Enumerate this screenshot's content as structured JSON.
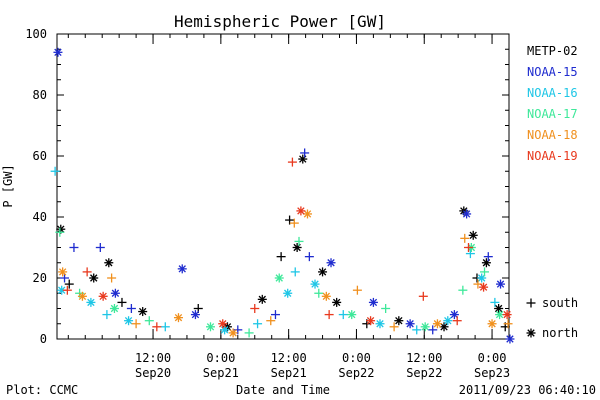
{
  "chart_data": {
    "type": "scatter",
    "title": "Hemispheric Power [GW]",
    "xlabel": "Date and Time",
    "ylabel": "P [GW]",
    "ylim": [
      0,
      100
    ],
    "yticks": [
      0,
      20,
      40,
      60,
      80,
      100
    ],
    "xlim": [
      "2011-09-19T19:00",
      "2011-09-23T03:00"
    ],
    "xticks": [
      {
        "t": "2011-09-20T12:00",
        "line1": "12:00",
        "line2": "Sep20"
      },
      {
        "t": "2011-09-21T00:00",
        "line1": "0:00",
        "line2": "Sep21"
      },
      {
        "t": "2011-09-21T12:00",
        "line1": "12:00",
        "line2": "Sep21"
      },
      {
        "t": "2011-09-22T00:00",
        "line1": "0:00",
        "line2": "Sep22"
      },
      {
        "t": "2011-09-22T12:00",
        "line1": "12:00",
        "line2": "Sep22"
      },
      {
        "t": "2011-09-23T00:00",
        "line1": "0:00",
        "line2": "Sep23"
      }
    ],
    "grid": false,
    "legend_position": "right",
    "marker_legend": [
      {
        "marker": "+",
        "label": "south"
      },
      {
        "marker": "*",
        "label": "north"
      }
    ],
    "series": [
      {
        "name": "METP-02",
        "color": "#000000",
        "points": [
          [
            "2011-09-19T19:40",
            36,
            "*"
          ],
          [
            "2011-09-19T21:10",
            18,
            "+"
          ],
          [
            "2011-09-20T01:30",
            20,
            "*"
          ],
          [
            "2011-09-20T04:10",
            25,
            "*"
          ],
          [
            "2011-09-20T06:30",
            12,
            "+"
          ],
          [
            "2011-09-20T10:10",
            9,
            "*"
          ],
          [
            "2011-09-20T20:00",
            10,
            "+"
          ],
          [
            "2011-09-21T01:10",
            4,
            "*"
          ],
          [
            "2011-09-21T07:20",
            13,
            "*"
          ],
          [
            "2011-09-21T10:40",
            27,
            "+"
          ],
          [
            "2011-09-21T12:10",
            39,
            "+"
          ],
          [
            "2011-09-21T13:30",
            30,
            "*"
          ],
          [
            "2011-09-21T14:30",
            59,
            "*"
          ],
          [
            "2011-09-21T18:00",
            22,
            "*"
          ],
          [
            "2011-09-21T20:30",
            12,
            "*"
          ],
          [
            "2011-09-22T01:50",
            5,
            "+"
          ],
          [
            "2011-09-22T07:30",
            6,
            "*"
          ],
          [
            "2011-09-22T15:30",
            4,
            "*"
          ],
          [
            "2011-09-22T19:00",
            42,
            "*"
          ],
          [
            "2011-09-22T20:40",
            34,
            "*"
          ],
          [
            "2011-09-22T21:20",
            20,
            "+"
          ],
          [
            "2011-09-22T23:00",
            25,
            "*"
          ],
          [
            "2011-09-23T01:10",
            10,
            "*"
          ],
          [
            "2011-09-23T02:20",
            4,
            "+"
          ]
        ]
      },
      {
        "name": "NOAA-15",
        "color": "#1f2ccf",
        "points": [
          [
            "2011-09-19T19:10",
            94,
            "*"
          ],
          [
            "2011-09-19T20:20",
            20,
            "+"
          ],
          [
            "2011-09-19T22:00",
            30,
            "+"
          ],
          [
            "2011-09-20T02:40",
            30,
            "+"
          ],
          [
            "2011-09-20T05:20",
            15,
            "*"
          ],
          [
            "2011-09-20T08:10",
            10,
            "+"
          ],
          [
            "2011-09-20T17:10",
            23,
            "*"
          ],
          [
            "2011-09-20T19:30",
            8,
            "*"
          ],
          [
            "2011-09-21T03:00",
            3,
            "+"
          ],
          [
            "2011-09-21T09:40",
            8,
            "+"
          ],
          [
            "2011-09-21T14:50",
            61,
            "+"
          ],
          [
            "2011-09-21T15:40",
            27,
            "+"
          ],
          [
            "2011-09-21T19:30",
            25,
            "*"
          ],
          [
            "2011-09-22T03:00",
            12,
            "*"
          ],
          [
            "2011-09-22T09:30",
            5,
            "*"
          ],
          [
            "2011-09-22T13:30",
            3,
            "+"
          ],
          [
            "2011-09-22T17:20",
            8,
            "*"
          ],
          [
            "2011-09-22T19:30",
            41,
            "*"
          ],
          [
            "2011-09-22T23:20",
            27,
            "+"
          ],
          [
            "2011-09-23T01:30",
            18,
            "*"
          ],
          [
            "2011-09-23T03:10",
            0,
            "*"
          ]
        ]
      },
      {
        "name": "NOAA-16",
        "color": "#1ec6e6",
        "points": [
          [
            "2011-09-19T18:40",
            55,
            "+"
          ],
          [
            "2011-09-19T19:50",
            16,
            "*"
          ],
          [
            "2011-09-20T01:00",
            12,
            "*"
          ],
          [
            "2011-09-20T03:50",
            8,
            "+"
          ],
          [
            "2011-09-20T07:40",
            6,
            "*"
          ],
          [
            "2011-09-20T14:10",
            4,
            "+"
          ],
          [
            "2011-09-21T00:40",
            3,
            "*"
          ],
          [
            "2011-09-21T06:30",
            5,
            "+"
          ],
          [
            "2011-09-21T11:50",
            15,
            "*"
          ],
          [
            "2011-09-21T13:10",
            22,
            "+"
          ],
          [
            "2011-09-21T16:40",
            18,
            "*"
          ],
          [
            "2011-09-21T21:40",
            8,
            "+"
          ],
          [
            "2011-09-22T04:10",
            5,
            "*"
          ],
          [
            "2011-09-22T10:40",
            3,
            "+"
          ],
          [
            "2011-09-22T16:10",
            6,
            "*"
          ],
          [
            "2011-09-22T20:10",
            28,
            "+"
          ],
          [
            "2011-09-22T22:10",
            20,
            "*"
          ],
          [
            "2011-09-23T00:30",
            12,
            "+"
          ]
        ]
      },
      {
        "name": "NOAA-17",
        "color": "#3ee89a",
        "points": [
          [
            "2011-09-19T19:30",
            35,
            "+"
          ],
          [
            "2011-09-19T23:00",
            15,
            "+"
          ],
          [
            "2011-09-20T05:10",
            10,
            "*"
          ],
          [
            "2011-09-20T11:20",
            6,
            "+"
          ],
          [
            "2011-09-20T22:10",
            4,
            "*"
          ],
          [
            "2011-09-21T05:00",
            2,
            "+"
          ],
          [
            "2011-09-21T10:20",
            20,
            "*"
          ],
          [
            "2011-09-21T13:50",
            32,
            "+"
          ],
          [
            "2011-09-21T17:20",
            15,
            "+"
          ],
          [
            "2011-09-21T23:10",
            8,
            "*"
          ],
          [
            "2011-09-22T05:10",
            10,
            "+"
          ],
          [
            "2011-09-22T12:10",
            4,
            "*"
          ],
          [
            "2011-09-22T18:50",
            16,
            "+"
          ],
          [
            "2011-09-22T20:20",
            30,
            "*"
          ],
          [
            "2011-09-22T22:40",
            22,
            "+"
          ],
          [
            "2011-09-23T01:20",
            8,
            "*"
          ]
        ]
      },
      {
        "name": "NOAA-18",
        "color": "#f0901e",
        "points": [
          [
            "2011-09-19T20:00",
            22,
            "*"
          ],
          [
            "2011-09-19T23:30",
            14,
            "*"
          ],
          [
            "2011-09-20T04:40",
            20,
            "+"
          ],
          [
            "2011-09-20T09:00",
            5,
            "+"
          ],
          [
            "2011-09-20T16:30",
            7,
            "*"
          ],
          [
            "2011-09-21T02:10",
            2,
            "*"
          ],
          [
            "2011-09-21T08:50",
            6,
            "+"
          ],
          [
            "2011-09-21T13:00",
            38,
            "+"
          ],
          [
            "2011-09-21T15:20",
            41,
            "*"
          ],
          [
            "2011-09-21T18:40",
            14,
            "*"
          ],
          [
            "2011-09-22T00:10",
            16,
            "+"
          ],
          [
            "2011-09-22T06:40",
            4,
            "+"
          ],
          [
            "2011-09-22T14:20",
            5,
            "*"
          ],
          [
            "2011-09-22T19:10",
            33,
            "+"
          ],
          [
            "2011-09-22T21:30",
            18,
            "+"
          ],
          [
            "2011-09-23T00:00",
            5,
            "*"
          ],
          [
            "2011-09-23T02:50",
            5,
            "+"
          ]
        ]
      },
      {
        "name": "NOAA-19",
        "color": "#e8391e",
        "points": [
          [
            "2011-09-19T20:50",
            16,
            "+"
          ],
          [
            "2011-09-20T00:20",
            22,
            "+"
          ],
          [
            "2011-09-20T03:10",
            14,
            "*"
          ],
          [
            "2011-09-20T12:40",
            4,
            "+"
          ],
          [
            "2011-09-21T00:20",
            5,
            "*"
          ],
          [
            "2011-09-21T06:00",
            10,
            "+"
          ],
          [
            "2011-09-21T12:40",
            58,
            "+"
          ],
          [
            "2011-09-21T14:10",
            42,
            "*"
          ],
          [
            "2011-09-21T19:10",
            8,
            "+"
          ],
          [
            "2011-09-22T02:30",
            6,
            "*"
          ],
          [
            "2011-09-22T11:50",
            14,
            "+"
          ],
          [
            "2011-09-22T17:50",
            6,
            "+"
          ],
          [
            "2011-09-22T19:50",
            30,
            "+"
          ],
          [
            "2011-09-22T22:30",
            17,
            "*"
          ],
          [
            "2011-09-23T02:40",
            8,
            "*"
          ]
        ]
      }
    ]
  },
  "footer": {
    "left": "Plot: CCMC",
    "right": "2011/09/23 06:40:10"
  }
}
